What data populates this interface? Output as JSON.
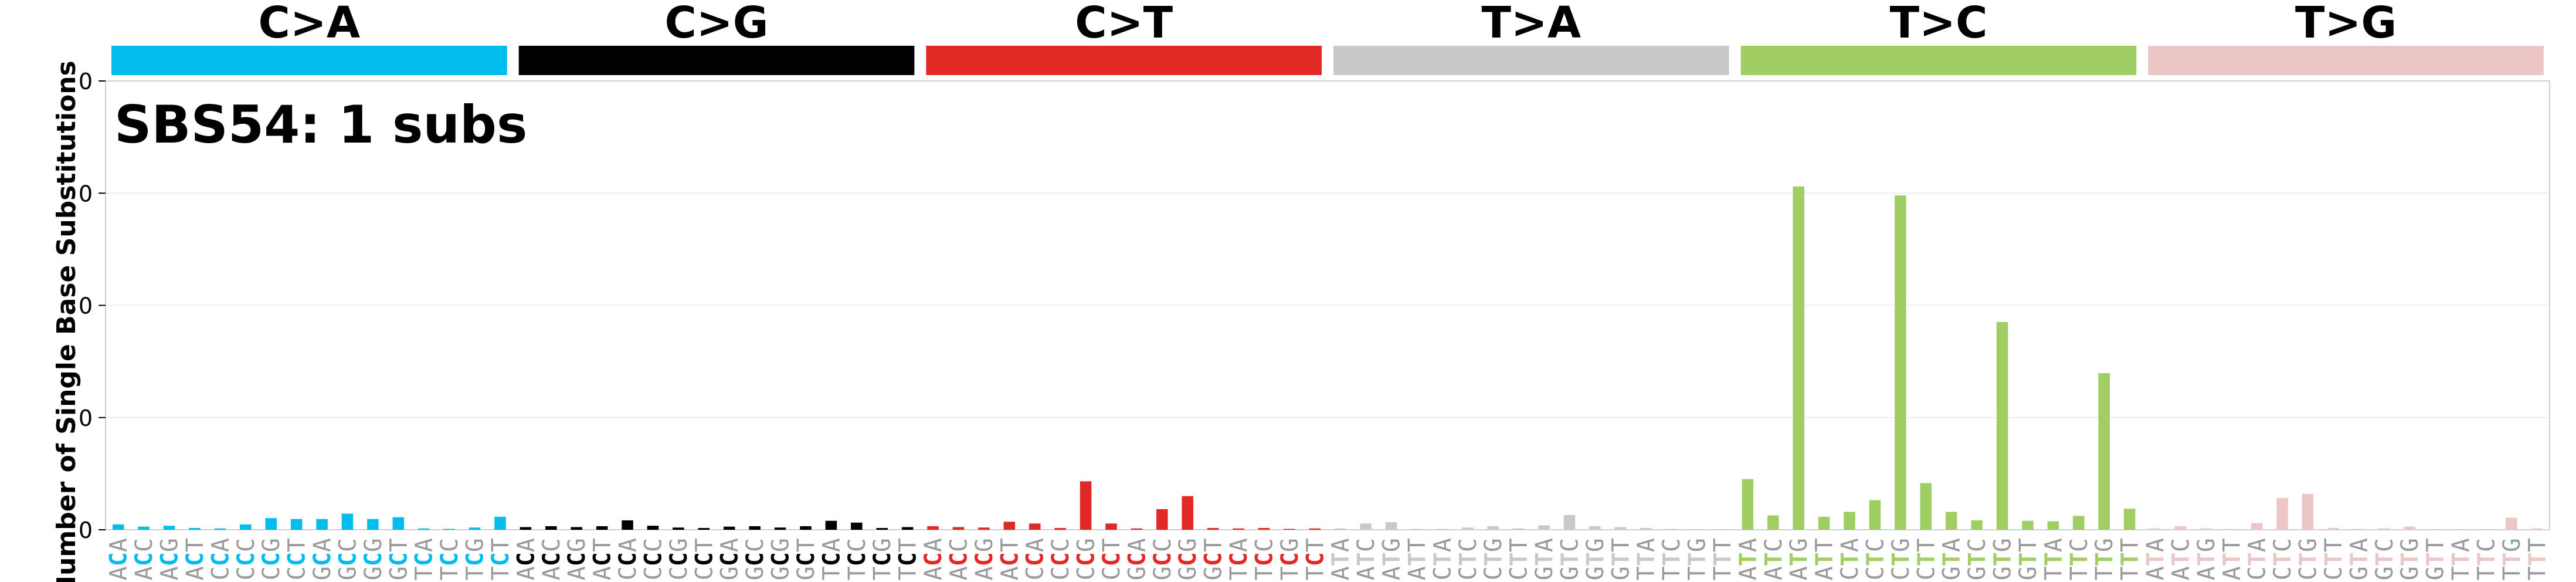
{
  "chart_data": {
    "type": "bar",
    "title": "SBS54: 1 subs",
    "ylabel": "Number of Single Base Substitutions",
    "xlabel": "",
    "ylim": [
      0,
      1
    ],
    "yticks": [
      "0",
      "0",
      "0",
      "0",
      "0"
    ],
    "grid": true,
    "categories": [
      "ACA",
      "ACC",
      "ACG",
      "ACT",
      "CCA",
      "CCC",
      "CCG",
      "CCT",
      "GCA",
      "GCC",
      "GCG",
      "GCT",
      "TCA",
      "TCC",
      "TCG",
      "TCT",
      "ACA",
      "ACC",
      "ACG",
      "ACT",
      "CCA",
      "CCC",
      "CCG",
      "CCT",
      "GCA",
      "GCC",
      "GCG",
      "GCT",
      "TCA",
      "TCC",
      "TCG",
      "TCT",
      "ACA",
      "ACC",
      "ACG",
      "ACT",
      "CCA",
      "CCC",
      "CCG",
      "CCT",
      "GCA",
      "GCC",
      "GCG",
      "GCT",
      "TCA",
      "TCC",
      "TCG",
      "TCT",
      "ATA",
      "ATC",
      "ATG",
      "ATT",
      "CTA",
      "CTC",
      "CTG",
      "CTT",
      "GTA",
      "GTC",
      "GTG",
      "GTT",
      "TTA",
      "TTC",
      "TTG",
      "TTT",
      "ATA",
      "ATC",
      "ATG",
      "ATT",
      "CTA",
      "CTC",
      "CTG",
      "CTT",
      "GTA",
      "GTC",
      "GTG",
      "GTT",
      "TTA",
      "TTC",
      "TTG",
      "TTT",
      "ATA",
      "ATC",
      "ATG",
      "ATT",
      "CTA",
      "CTC",
      "CTG",
      "CTT",
      "GTA",
      "GTC",
      "GTG",
      "GTT",
      "TTA",
      "TTC",
      "TTG",
      "TTT"
    ],
    "groups": [
      {
        "label": "C>A",
        "color": "#03bcee"
      },
      {
        "label": "C>G",
        "color": "#010101"
      },
      {
        "label": "C>T",
        "color": "#e32926"
      },
      {
        "label": "T>A",
        "color": "#cac9c9"
      },
      {
        "label": "T>C",
        "color": "#a1ce63"
      },
      {
        "label": "T>G",
        "color": "#ebc6c4"
      }
    ],
    "values": [
      0.012,
      0.007,
      0.009,
      0.004,
      0.003,
      0.012,
      0.026,
      0.024,
      0.024,
      0.036,
      0.024,
      0.028,
      0.003,
      0.002,
      0.005,
      0.029,
      0.006,
      0.008,
      0.006,
      0.008,
      0.021,
      0.009,
      0.005,
      0.004,
      0.007,
      0.008,
      0.005,
      0.008,
      0.02,
      0.016,
      0.004,
      0.006,
      0.008,
      0.006,
      0.005,
      0.018,
      0.014,
      0.004,
      0.108,
      0.014,
      0.003,
      0.046,
      0.075,
      0.004,
      0.003,
      0.004,
      0.002,
      0.003,
      0.003,
      0.014,
      0.017,
      0.002,
      0.002,
      0.005,
      0.008,
      0.003,
      0.01,
      0.033,
      0.008,
      0.006,
      0.004,
      0.002,
      0.001,
      0.001,
      0.113,
      0.032,
      0.765,
      0.029,
      0.04,
      0.066,
      0.745,
      0.104,
      0.04,
      0.021,
      0.463,
      0.02,
      0.019,
      0.031,
      0.349,
      0.047,
      0.003,
      0.008,
      0.003,
      0.002,
      0.015,
      0.071,
      0.08,
      0.004,
      0.002,
      0.003,
      0.007,
      0.001,
      0.001,
      0.001,
      0.027,
      0.003
    ]
  }
}
